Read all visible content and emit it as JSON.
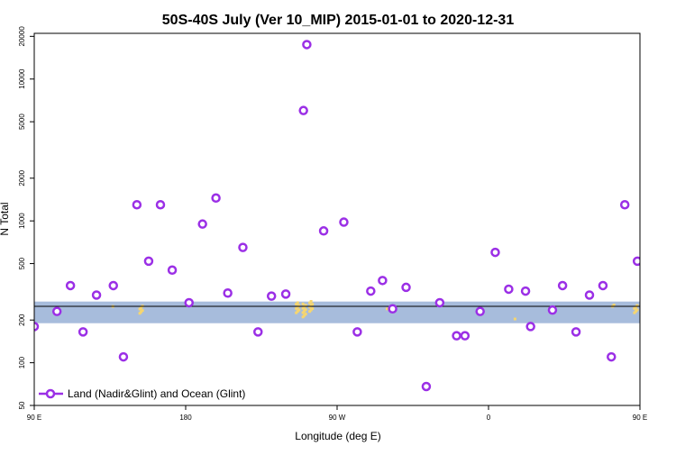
{
  "chart_data": {
    "type": "scatter",
    "title": "50S-40S July (Ver 10_MIP)   2015-01-01 to 2020-12-31",
    "xlabel": "Longitude (deg E)",
    "ylabel": "N Total",
    "y_scale": "log",
    "xlim": [
      90,
      450
    ],
    "ylim": [
      50,
      21000
    ],
    "x_ticks": [
      {
        "value": 90,
        "label": "90 E"
      },
      {
        "value": 180,
        "label": "180"
      },
      {
        "value": 270,
        "label": "90 W"
      },
      {
        "value": 360,
        "label": "0"
      },
      {
        "value": 450,
        "label": "90 E"
      },
      {
        "value": 540,
        "label": "180"
      }
    ],
    "y_ticks": [
      {
        "value": 50,
        "label": "50"
      },
      {
        "value": 100,
        "label": "100"
      },
      {
        "value": 200,
        "label": "200"
      },
      {
        "value": 500,
        "label": "500"
      },
      {
        "value": 1000,
        "label": "1000"
      },
      {
        "value": 2000,
        "label": "2000"
      },
      {
        "value": 5000,
        "label": "5000"
      },
      {
        "value": 10000,
        "label": "10000"
      },
      {
        "value": 20000,
        "label": "20000"
      }
    ],
    "band": {
      "low": 190,
      "high": 270,
      "color": "#a7bcdc"
    },
    "reference_line": 250,
    "land_color": "#f7d66e",
    "series": [
      {
        "name": "Land (Nadir&Glint) and Ocean (Glint)",
        "color": "#9b2fe6",
        "points": [
          [
            90,
            180
          ],
          [
            103.5,
            230
          ],
          [
            111.5,
            350
          ],
          [
            119,
            165
          ],
          [
            127,
            300
          ],
          [
            137,
            350
          ],
          [
            143,
            110
          ],
          [
            151,
            1300
          ],
          [
            158,
            520
          ],
          [
            165,
            1300
          ],
          [
            172,
            450
          ],
          [
            182,
            265
          ],
          [
            190,
            950
          ],
          [
            198,
            1450
          ],
          [
            205,
            310
          ],
          [
            214,
            650
          ],
          [
            223,
            165
          ],
          [
            231,
            295
          ],
          [
            239.5,
            305
          ],
          [
            250,
            6000
          ],
          [
            252,
            17500
          ],
          [
            262,
            850
          ],
          [
            274,
            980
          ],
          [
            282,
            165
          ],
          [
            290,
            320
          ],
          [
            297,
            380
          ],
          [
            303,
            240
          ],
          [
            311,
            340
          ],
          [
            323,
            68
          ],
          [
            331,
            265
          ],
          [
            341,
            155
          ],
          [
            346,
            155
          ],
          [
            355,
            230
          ],
          [
            364,
            600
          ],
          [
            372,
            330
          ],
          [
            382,
            320
          ],
          [
            385,
            180
          ],
          [
            398,
            235
          ],
          [
            404,
            350
          ],
          [
            412,
            165
          ],
          [
            420,
            300
          ],
          [
            428,
            350
          ],
          [
            433,
            110
          ],
          [
            441,
            1300
          ],
          [
            448.5,
            520
          ]
        ]
      }
    ],
    "legend": {
      "position": "bottom-left"
    }
  }
}
